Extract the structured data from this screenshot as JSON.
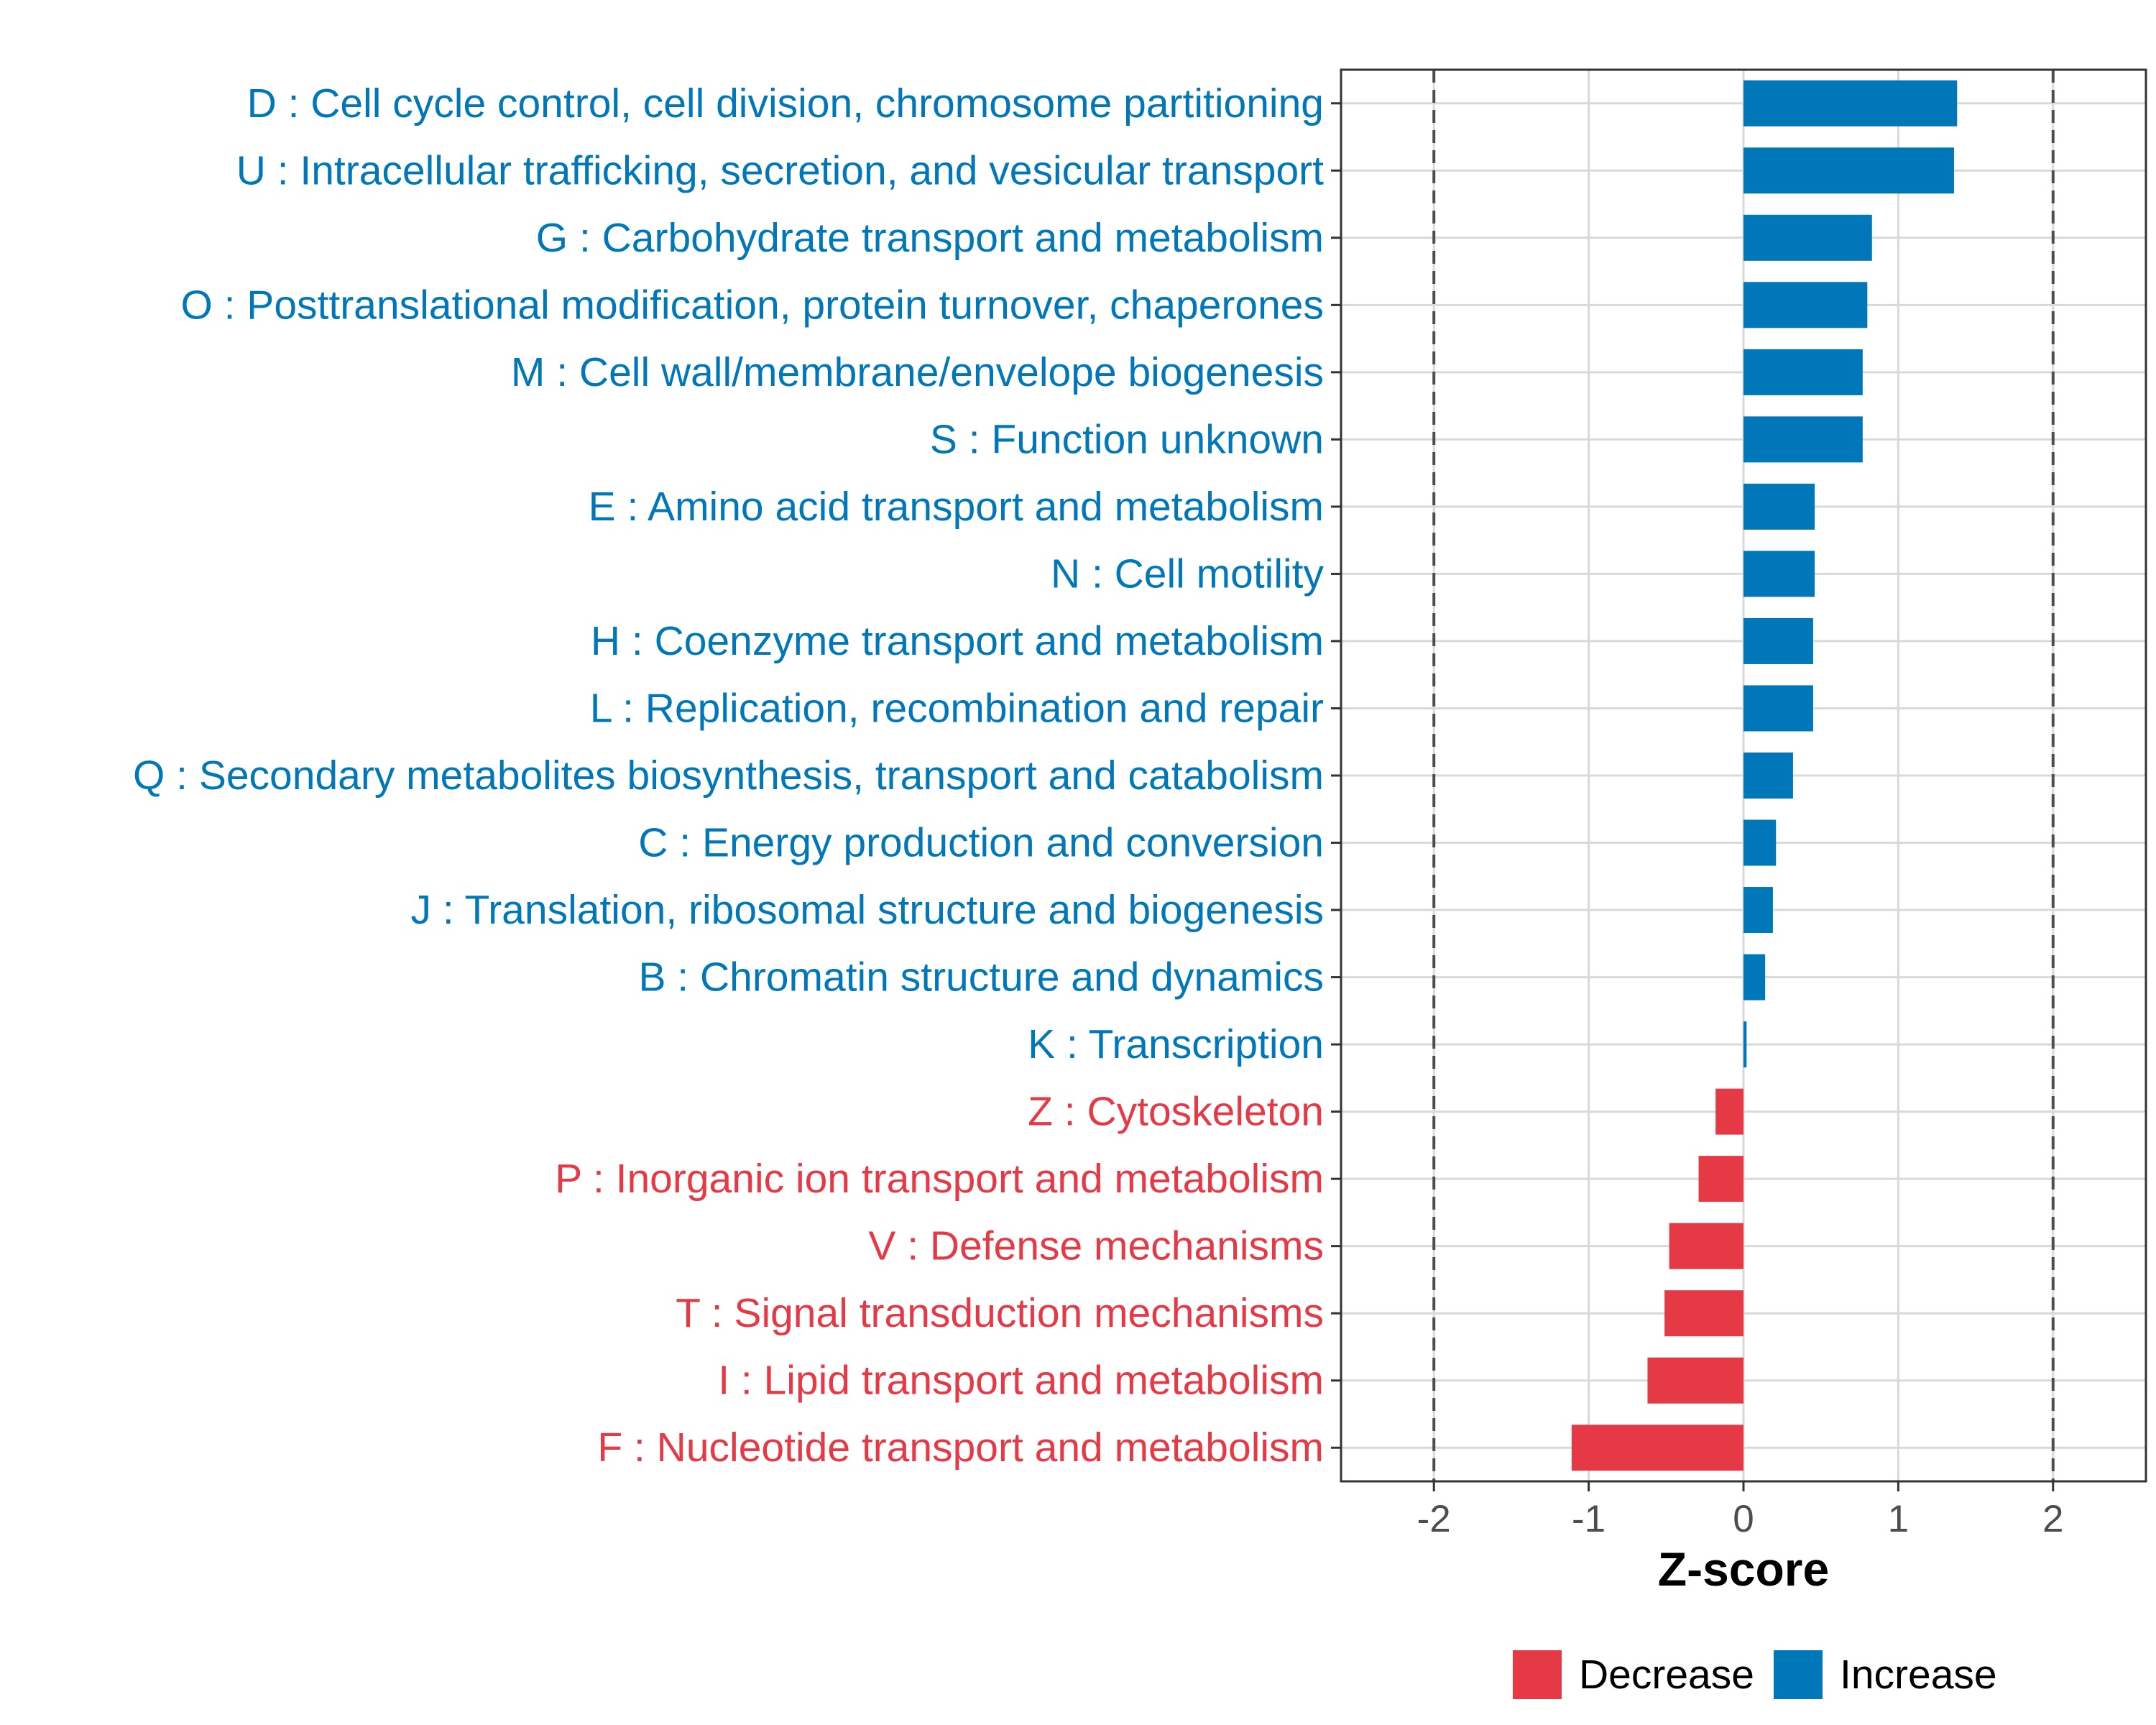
{
  "colors": {
    "increase": "#0077b8",
    "decrease": "#e63946",
    "grid": "#d9d9d9",
    "refline": "#4d4d4d"
  },
  "chart_data": {
    "type": "bar",
    "orientation": "horizontal",
    "categories": [
      "D : Cell cycle control, cell division, chromosome partitioning",
      "U : Intracellular trafficking, secretion, and vesicular transport",
      "G : Carbohydrate transport and metabolism",
      "O : Posttranslational modification, protein turnover, chaperones",
      "M : Cell wall/membrane/envelope biogenesis",
      "S : Function unknown",
      "E : Amino acid transport and metabolism",
      "N : Cell motility",
      "H : Coenzyme transport and metabolism",
      "L : Replication, recombination and repair",
      "Q : Secondary metabolites biosynthesis, transport and catabolism",
      "C : Energy production and conversion",
      "J : Translation, ribosomal structure and biogenesis",
      "B : Chromatin structure and dynamics",
      "K : Transcription",
      "Z : Cytoskeleton",
      "P : Inorganic ion transport and metabolism",
      "V : Defense mechanisms",
      "T : Signal transduction mechanisms",
      "I : Lipid transport and metabolism",
      "F : Nucleotide transport and metabolism"
    ],
    "values": [
      1.38,
      1.36,
      0.83,
      0.8,
      0.77,
      0.77,
      0.46,
      0.46,
      0.45,
      0.45,
      0.32,
      0.21,
      0.19,
      0.14,
      0.02,
      -0.18,
      -0.29,
      -0.48,
      -0.51,
      -0.62,
      -1.11
    ],
    "groups": [
      "Increase",
      "Increase",
      "Increase",
      "Increase",
      "Increase",
      "Increase",
      "Increase",
      "Increase",
      "Increase",
      "Increase",
      "Increase",
      "Increase",
      "Increase",
      "Increase",
      "Increase",
      "Decrease",
      "Decrease",
      "Decrease",
      "Decrease",
      "Decrease",
      "Decrease"
    ],
    "xlabel": "Z-score",
    "ylabel": "",
    "xlim": [
      -2.6,
      2.6
    ],
    "xticks": [
      -2,
      -1,
      0,
      1,
      2
    ],
    "xtick_labels": [
      "-2",
      "-1",
      "0",
      "1",
      "2"
    ],
    "reference_lines": [
      -2,
      2
    ],
    "grid": true,
    "legend": {
      "position": "bottom",
      "entries": [
        {
          "label": "Decrease",
          "group": "Decrease"
        },
        {
          "label": "Increase",
          "group": "Increase"
        }
      ]
    }
  }
}
